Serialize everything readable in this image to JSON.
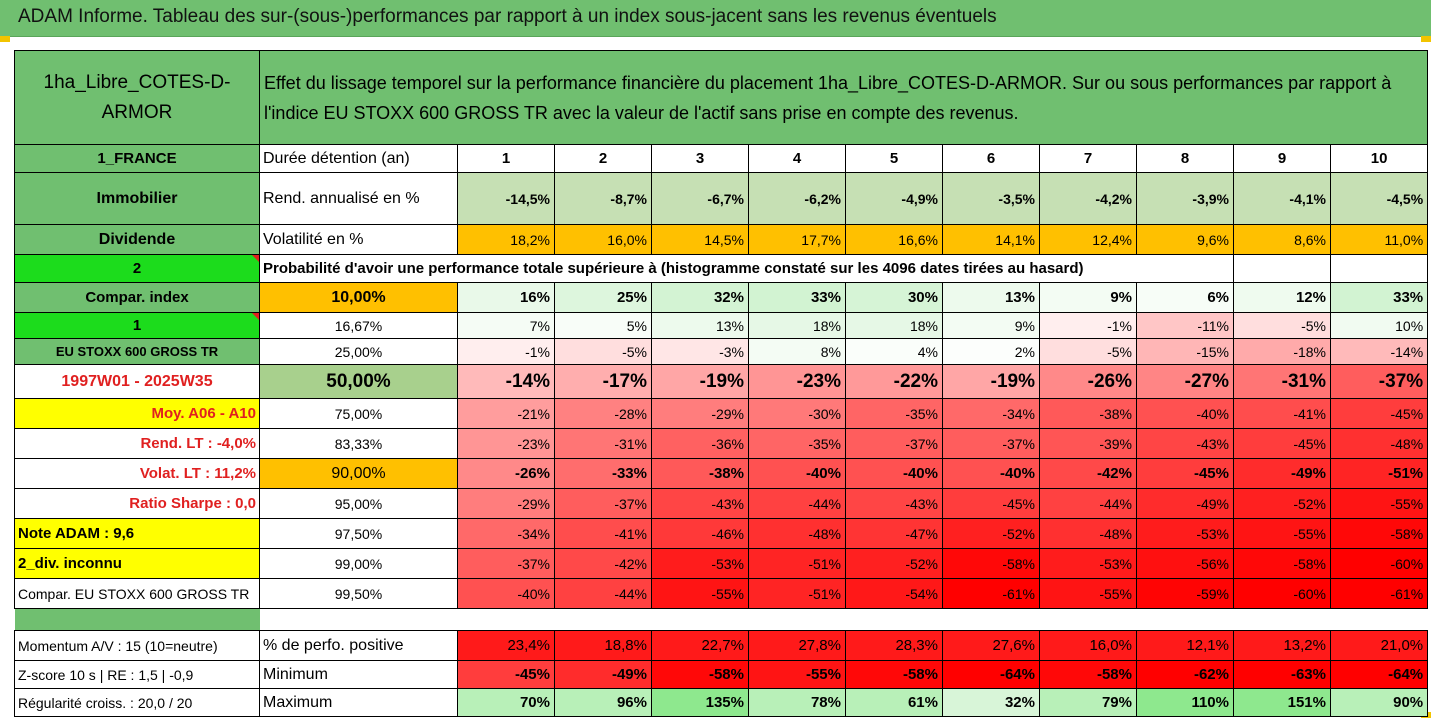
{
  "title": "ADAM Informe. Tableau des sur-(sous-)performances par rapport à un index sous-jacent sans les revenus éventuels",
  "header": {
    "placement": "1ha_Libre_COTES-D-ARMOR",
    "description": "Effet du lissage temporel sur la performance financière du placement 1ha_Libre_COTES-D-ARMOR. Sur ou sous performances par rapport à l'indice EU STOXX 600 GROSS TR avec la valeur de l'actif sans prise en compte des revenus."
  },
  "side": {
    "country": "1_FRANCE",
    "category": "Immobilier",
    "type": "Dividende",
    "code2": "2",
    "compar": "Compar. index",
    "code1": "1",
    "index": "EU STOXX 600 GROSS TR",
    "period": "1997W01 - 2025W35",
    "moy": "Moy. A06 - A10",
    "rend_lt": "Rend. LT :   -4,0%",
    "volat_lt": "Volat. LT :   11,2%",
    "sharpe": "Ratio Sharpe :   0,0",
    "note": "Note ADAM : 9,6",
    "div": "2_div. inconnu",
    "compar_full": "Compar. EU STOXX 600 GROSS TR",
    "momentum": "Momentum A/V : 15 (10=neutre)",
    "zscore": "Z-score 10 s  | RE : 1,5  | -0,9",
    "regularite": "Régularité croiss. : 20,0 / 20"
  },
  "rows_labels": {
    "duree": "Durée détention (an)",
    "rend": "Rend. annualisé en %",
    "volat": "Volatilité en %",
    "proba": "Probabilité d'avoir une performance totale supérieure à (histogramme constaté sur les 4096 dates tirées au hasard)",
    "perf_pos": "% de perfo. positive",
    "minimum": "Minimum",
    "maximum": "Maximum"
  },
  "years": [
    "1",
    "2",
    "3",
    "4",
    "5",
    "6",
    "7",
    "8",
    "9",
    "10"
  ],
  "rend": [
    "-14,5%",
    "-8,7%",
    "-6,7%",
    "-6,2%",
    "-4,9%",
    "-3,5%",
    "-4,2%",
    "-3,9%",
    "-4,1%",
    "-4,5%"
  ],
  "volat": [
    "18,2%",
    "16,0%",
    "14,5%",
    "17,7%",
    "16,6%",
    "14,1%",
    "12,4%",
    "9,6%",
    "8,6%",
    "11,0%"
  ],
  "quantiles": [
    {
      "q": "10,00%",
      "v": [
        "16%",
        "25%",
        "32%",
        "33%",
        "30%",
        "13%",
        "9%",
        "6%",
        "12%",
        "33%"
      ]
    },
    {
      "q": "16,67%",
      "v": [
        "7%",
        "5%",
        "13%",
        "18%",
        "18%",
        "9%",
        "-1%",
        "-11%",
        "-5%",
        "10%"
      ]
    },
    {
      "q": "25,00%",
      "v": [
        "-1%",
        "-5%",
        "-3%",
        "8%",
        "4%",
        "2%",
        "-5%",
        "-15%",
        "-18%",
        "-14%"
      ]
    },
    {
      "q": "50,00%",
      "v": [
        "-14%",
        "-17%",
        "-19%",
        "-23%",
        "-22%",
        "-19%",
        "-26%",
        "-27%",
        "-31%",
        "-37%"
      ]
    },
    {
      "q": "75,00%",
      "v": [
        "-21%",
        "-28%",
        "-29%",
        "-30%",
        "-35%",
        "-34%",
        "-38%",
        "-40%",
        "-41%",
        "-45%"
      ]
    },
    {
      "q": "83,33%",
      "v": [
        "-23%",
        "-31%",
        "-36%",
        "-35%",
        "-37%",
        "-37%",
        "-39%",
        "-43%",
        "-45%",
        "-48%"
      ]
    },
    {
      "q": "90,00%",
      "v": [
        "-26%",
        "-33%",
        "-38%",
        "-40%",
        "-40%",
        "-40%",
        "-42%",
        "-45%",
        "-49%",
        "-51%"
      ]
    },
    {
      "q": "95,00%",
      "v": [
        "-29%",
        "-37%",
        "-43%",
        "-44%",
        "-43%",
        "-45%",
        "-44%",
        "-49%",
        "-52%",
        "-55%"
      ]
    },
    {
      "q": "97,50%",
      "v": [
        "-34%",
        "-41%",
        "-46%",
        "-48%",
        "-47%",
        "-52%",
        "-48%",
        "-53%",
        "-55%",
        "-58%"
      ]
    },
    {
      "q": "99,00%",
      "v": [
        "-37%",
        "-42%",
        "-53%",
        "-51%",
        "-52%",
        "-58%",
        "-53%",
        "-56%",
        "-58%",
        "-60%"
      ]
    },
    {
      "q": "99,50%",
      "v": [
        "-40%",
        "-44%",
        "-55%",
        "-51%",
        "-54%",
        "-61%",
        "-55%",
        "-59%",
        "-60%",
        "-61%"
      ]
    }
  ],
  "perf_pos": [
    "23,4%",
    "18,8%",
    "22,7%",
    "27,8%",
    "28,3%",
    "27,6%",
    "16,0%",
    "12,1%",
    "13,2%",
    "21,0%"
  ],
  "minimum": [
    "-45%",
    "-49%",
    "-58%",
    "-55%",
    "-58%",
    "-64%",
    "-58%",
    "-62%",
    "-63%",
    "-64%"
  ],
  "maximum": [
    "70%",
    "96%",
    "135%",
    "78%",
    "61%",
    "32%",
    "79%",
    "110%",
    "151%",
    "90%"
  ],
  "colors": {
    "header_green": "#70bf70",
    "lime": "#1cdc1c",
    "yellow": "#ffff00",
    "orange": "#ffc000",
    "red": "#ff0000",
    "label_red": "#e02020"
  }
}
